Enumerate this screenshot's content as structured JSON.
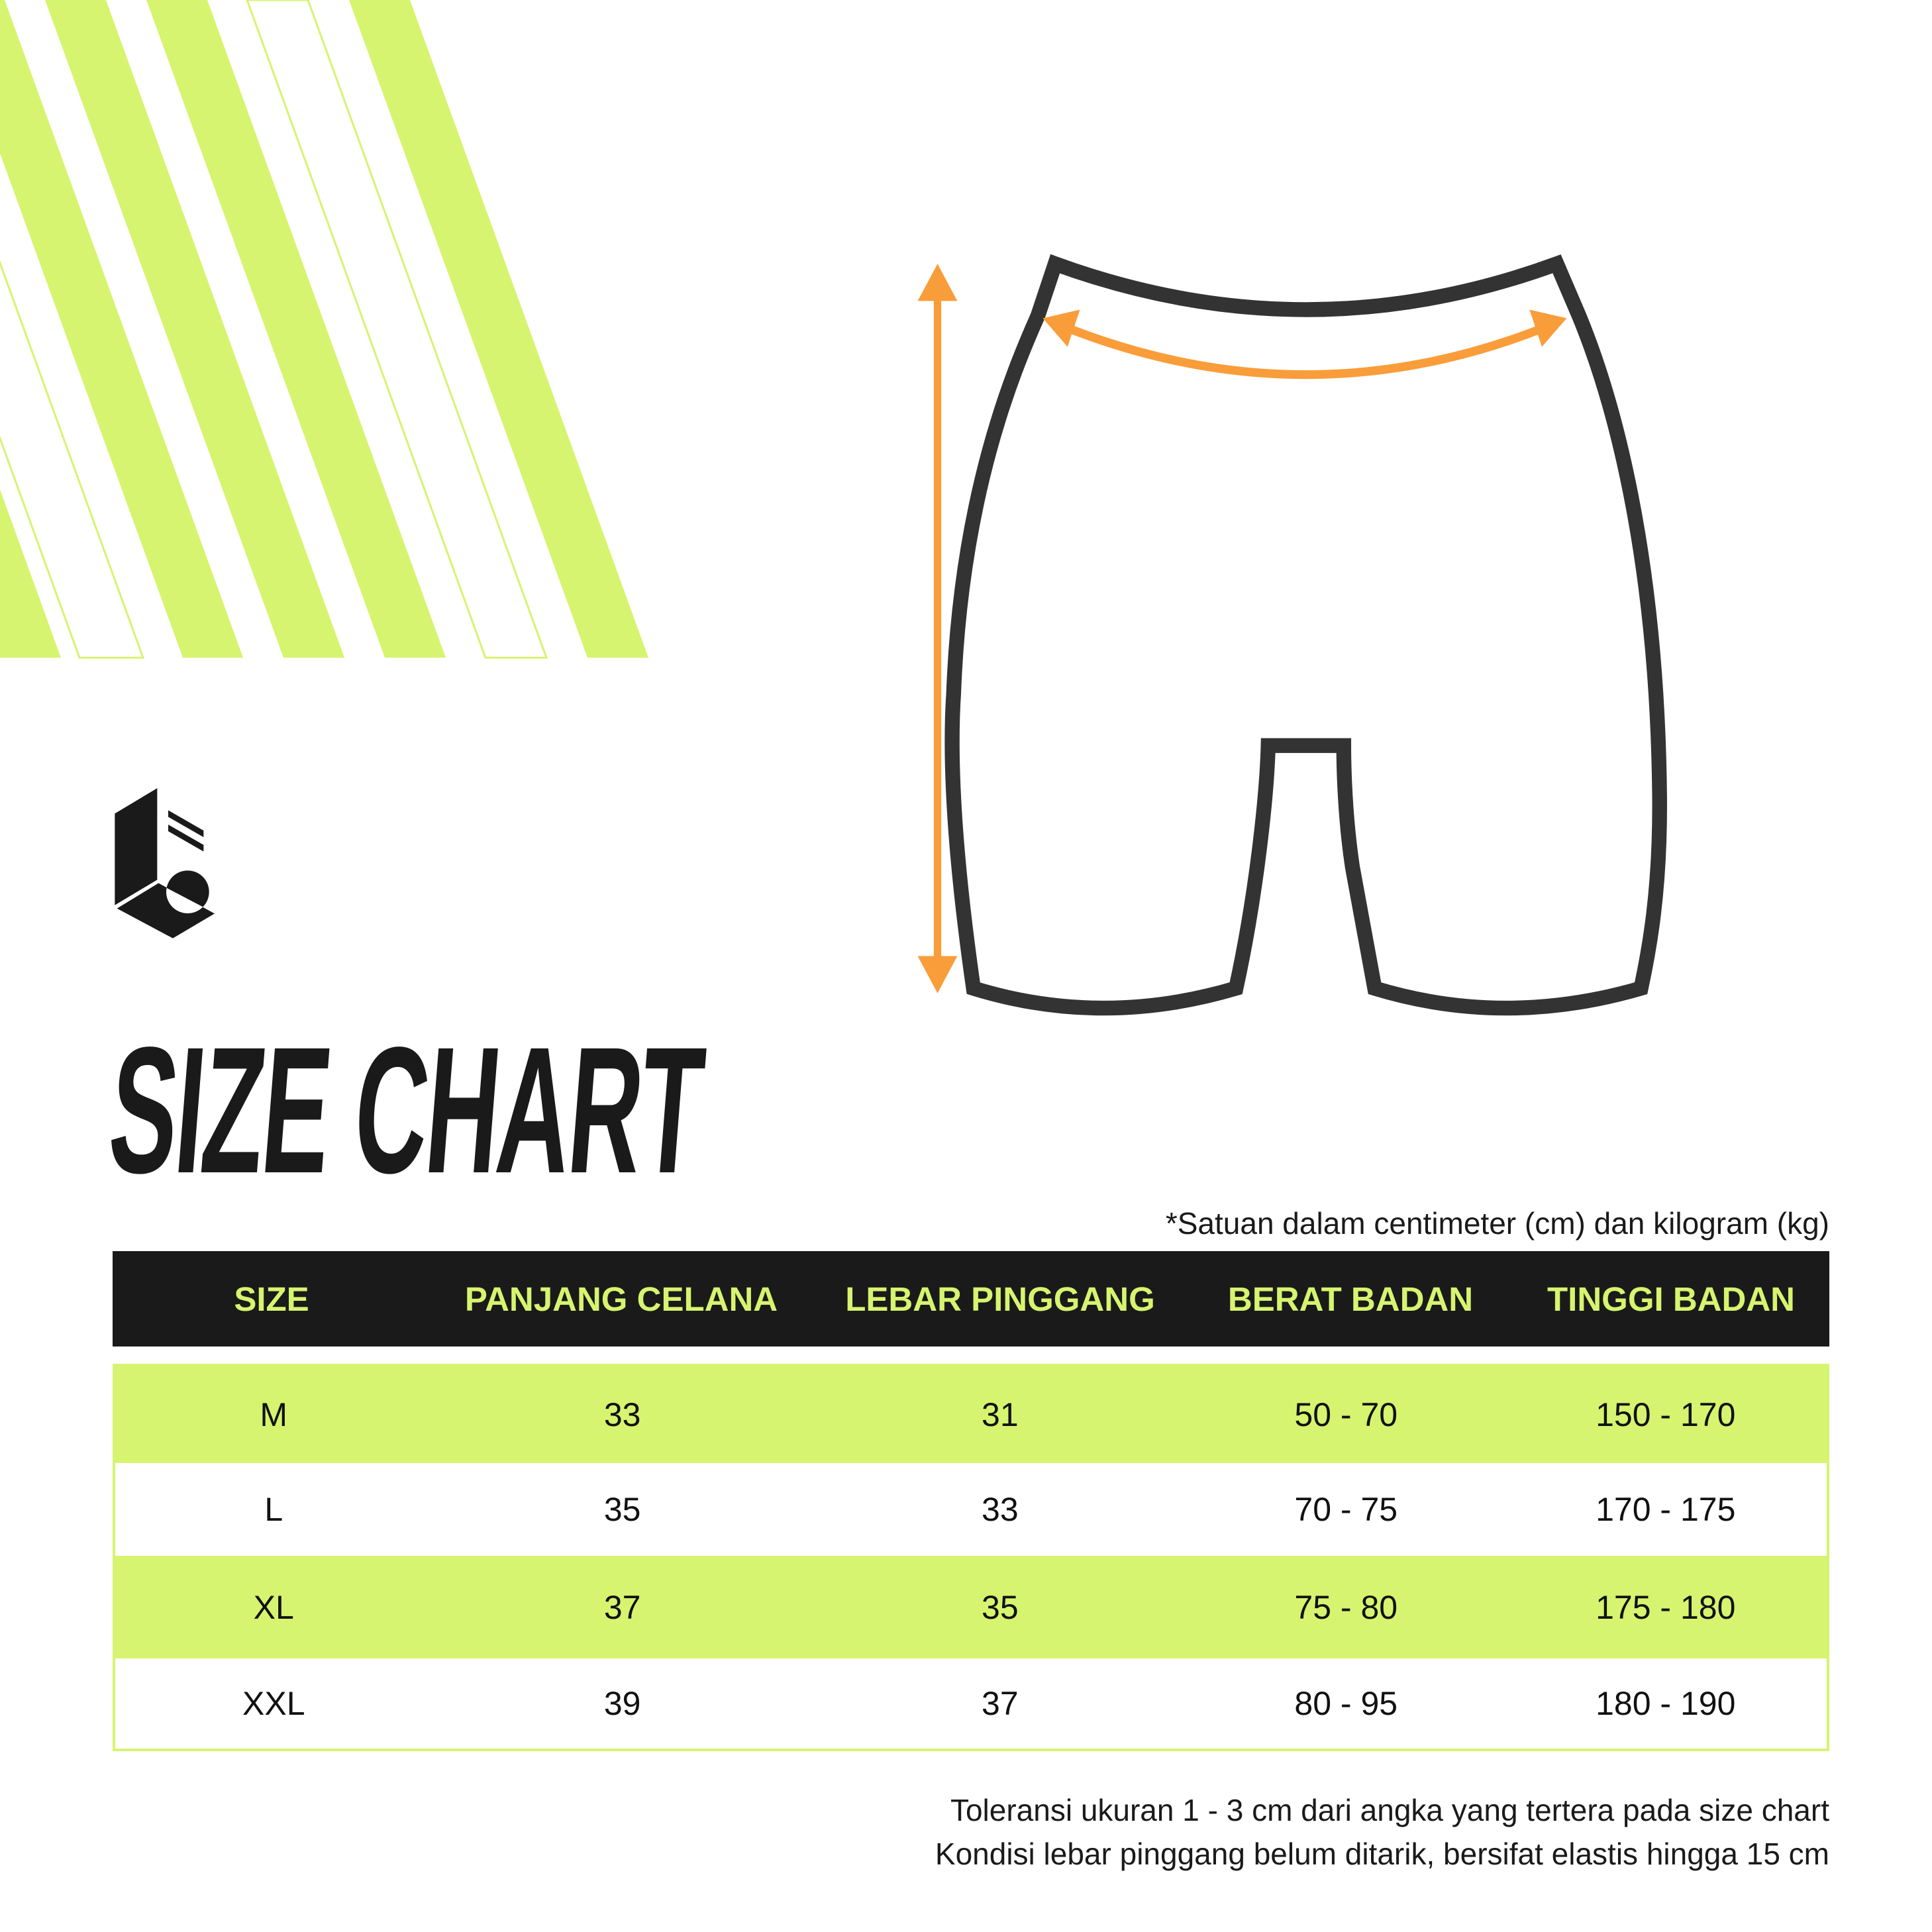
{
  "colors": {
    "accent": "#d6f46f",
    "dark": "#1a1a1a",
    "measure_arrow": "#f99d3a",
    "outline": "#333333"
  },
  "logo": {
    "icon": "brand-logo-icon"
  },
  "illustration": {
    "icon": "shorts-diagram-icon",
    "measures": [
      "panjang-celana",
      "lebar-pinggang"
    ]
  },
  "title": "SIZE CHART",
  "units_note": "*Satuan dalam centimeter (cm) dan kilogram (kg)",
  "table": {
    "headers": [
      "SIZE",
      "PANJANG CELANA",
      "LEBAR PINGGANG",
      "BERAT BADAN",
      "TINGGI BADAN"
    ],
    "rows": [
      [
        "M",
        "33",
        "31",
        "50 - 70",
        "150 - 170"
      ],
      [
        "L",
        "35",
        "33",
        "70 - 75",
        "170 - 175"
      ],
      [
        "XL",
        "37",
        "35",
        "75 - 80",
        "175 - 180"
      ],
      [
        "XXL",
        "39",
        "37",
        "80 - 95",
        "180 - 190"
      ]
    ]
  },
  "footer": {
    "line1": "Toleransi ukuran 1 - 3 cm dari angka yang tertera pada size chart",
    "line2": "Kondisi lebar pinggang belum ditarik, bersifat elastis hingga 15 cm"
  }
}
